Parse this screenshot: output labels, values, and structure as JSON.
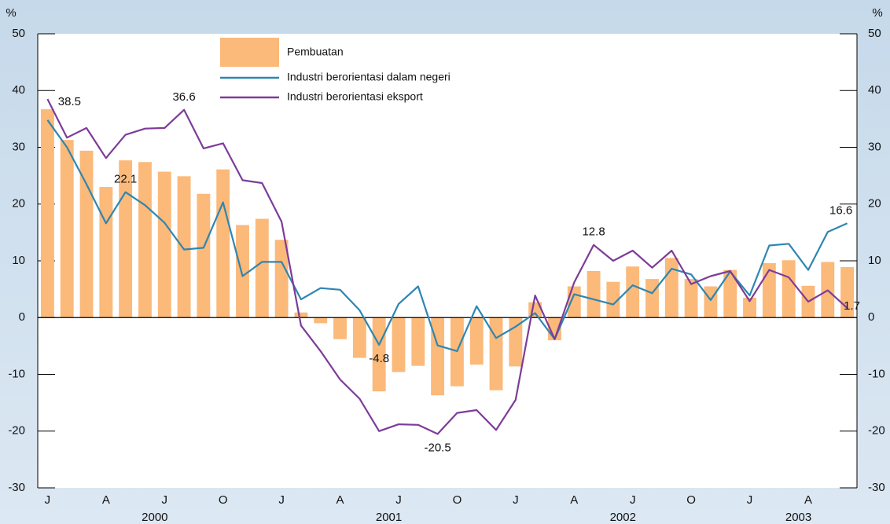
{
  "chart_data": {
    "type": "bar-line",
    "y_unit": "%",
    "categories": [
      "J",
      null,
      null,
      "A",
      null,
      null,
      "J",
      null,
      null,
      "O",
      null,
      null,
      "J",
      null,
      null,
      "A",
      null,
      null,
      "J",
      null,
      null,
      "O",
      null,
      null,
      "J",
      null,
      null,
      "A",
      null,
      null,
      "J",
      null,
      null,
      "O",
      null,
      null,
      "J",
      null,
      null,
      "A",
      null,
      null
    ],
    "years": [
      "2000",
      "2001",
      "2002",
      "2003"
    ],
    "series": [
      {
        "name": "Pembuatan",
        "kind": "bar",
        "color": "#fbb97a",
        "values": [
          36.7,
          31.3,
          29.4,
          23.0,
          27.7,
          27.4,
          25.7,
          24.9,
          21.8,
          26.1,
          16.3,
          17.4,
          13.7,
          0.9,
          -1.0,
          -3.8,
          -7.1,
          -13.0,
          -9.6,
          -8.5,
          -13.7,
          -12.1,
          -8.3,
          -12.8,
          -8.6,
          2.7,
          -4.0,
          5.5,
          8.2,
          6.3,
          9.0,
          6.8,
          10.5,
          6.8,
          5.5,
          8.4,
          3.5,
          9.6,
          10.1,
          5.6,
          9.8,
          8.9
        ]
      },
      {
        "name": "Industri berorientasi dalam negeri",
        "kind": "line",
        "color": "#2e86b0",
        "values": [
          34.8,
          30.0,
          23.5,
          16.6,
          22.1,
          19.8,
          16.7,
          12.0,
          12.3,
          20.3,
          7.3,
          9.8,
          9.8,
          3.2,
          5.2,
          4.9,
          1.3,
          -4.8,
          2.4,
          5.5,
          -4.9,
          -5.9,
          2.0,
          -3.6,
          -1.6,
          0.8,
          -3.8,
          4.1,
          3.2,
          2.3,
          5.7,
          4.3,
          8.6,
          7.6,
          3.1,
          8.1,
          3.9,
          12.7,
          13.0,
          8.4,
          15.1,
          16.6
        ],
        "value_labels": [
          null,
          null,
          null,
          null,
          "22.1",
          null,
          null,
          null,
          null,
          null,
          null,
          null,
          null,
          null,
          null,
          null,
          null,
          "-4.8",
          null,
          null,
          null,
          null,
          null,
          null,
          null,
          null,
          null,
          null,
          null,
          null,
          null,
          null,
          null,
          null,
          null,
          null,
          null,
          null,
          null,
          null,
          null,
          "16.6"
        ]
      },
      {
        "name": "Industri berorientasi eksport",
        "kind": "line",
        "color": "#7d3c98",
        "values": [
          38.5,
          31.7,
          33.4,
          28.1,
          32.2,
          33.3,
          33.4,
          36.6,
          29.8,
          30.7,
          24.2,
          23.7,
          16.9,
          -1.4,
          -5.9,
          -10.9,
          -14.3,
          -20.0,
          -18.8,
          -18.9,
          -20.5,
          -16.8,
          -16.3,
          -19.8,
          -14.5,
          3.9,
          -3.8,
          6.2,
          12.8,
          10.0,
          11.8,
          8.8,
          11.8,
          5.9,
          7.3,
          8.2,
          2.9,
          8.4,
          7.1,
          2.8,
          4.8,
          1.7
        ],
        "value_labels": [
          "38.5",
          null,
          null,
          null,
          null,
          null,
          null,
          "36.6",
          null,
          null,
          null,
          null,
          null,
          null,
          null,
          null,
          null,
          null,
          null,
          null,
          "-20.5",
          null,
          null,
          null,
          null,
          null,
          null,
          null,
          "12.8",
          null,
          null,
          null,
          null,
          null,
          null,
          null,
          null,
          null,
          null,
          null,
          null,
          "1.7"
        ]
      }
    ],
    "ylim": [
      -30,
      50
    ],
    "yticks": [
      -30,
      -20,
      -10,
      0,
      10,
      20,
      30,
      40,
      50
    ]
  }
}
